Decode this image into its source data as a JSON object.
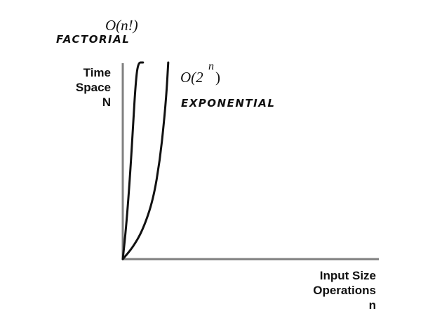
{
  "chart_data": {
    "type": "line",
    "title": "",
    "ylabel_lines": [
      "Time",
      "Space",
      "N"
    ],
    "xlabel_lines": [
      "Input Size",
      "Operations",
      "n"
    ],
    "grid": false,
    "legend": "none",
    "series": [
      {
        "name": "O(n!)",
        "label": "FACTORIAL",
        "notation": "O(n!)",
        "points": [
          [
            0,
            0
          ],
          [
            0.15,
            0.12
          ],
          [
            0.3,
            0.27
          ],
          [
            0.45,
            0.45
          ],
          [
            0.6,
            0.66
          ],
          [
            0.75,
            0.88
          ],
          [
            0.9,
            1.0
          ],
          [
            1.2,
            1.0
          ]
        ]
      },
      {
        "name": "O(2^n)",
        "label": "EXPONENTIAL",
        "notation_base": "O(2",
        "notation_exp": "n",
        "notation_close": ")",
        "points": [
          [
            0,
            0
          ],
          [
            0.6,
            0.06
          ],
          [
            1.2,
            0.15
          ],
          [
            1.8,
            0.3
          ],
          [
            2.2,
            0.5
          ],
          [
            2.45,
            0.7
          ],
          [
            2.6,
            0.85
          ],
          [
            2.7,
            1.0
          ]
        ]
      }
    ],
    "colors": {
      "axis": "#808080",
      "curve": "#111111"
    }
  }
}
